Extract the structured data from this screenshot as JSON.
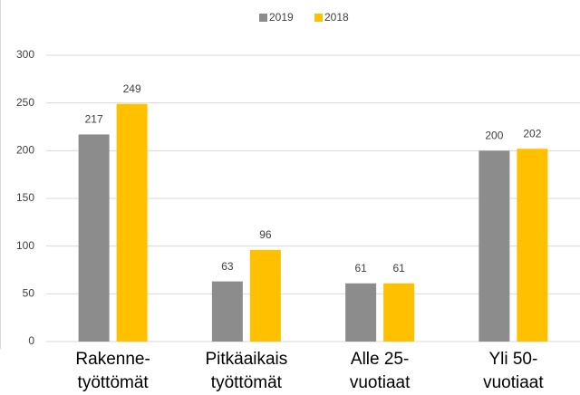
{
  "chart_data": {
    "type": "bar",
    "categories": [
      "Rakenne-\ntyöttömät",
      "Pitkäaikais\ntyöttömät",
      "Alle 25-\nvuotiaat",
      "Yli 50-\nvuotiaat"
    ],
    "series": [
      {
        "name": "2019",
        "color": "#8c8c8c",
        "values": [
          217,
          63,
          61,
          200
        ]
      },
      {
        "name": "2018",
        "color": "#ffc000",
        "values": [
          249,
          96,
          61,
          202
        ]
      }
    ],
    "ylim": [
      0,
      300
    ],
    "yticks": [
      0,
      50,
      100,
      150,
      200,
      250,
      300
    ],
    "grid": true,
    "legend": "top"
  }
}
